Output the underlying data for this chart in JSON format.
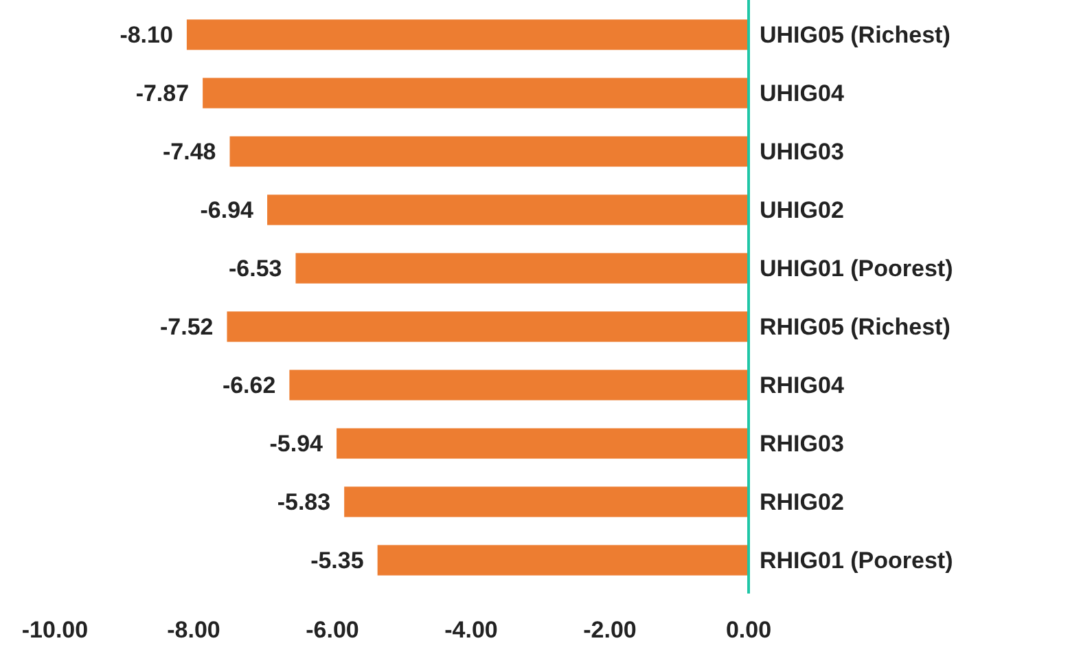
{
  "chart_data": {
    "type": "bar",
    "orientation": "horizontal",
    "categories": [
      "UHIG05 (Richest)",
      "UHIG04",
      "UHIG03",
      "UHIG02",
      "UHIG01 (Poorest)",
      "RHIG05 (Richest)",
      "RHIG04",
      "RHIG03",
      "RHIG02",
      "RHIG01 (Poorest)"
    ],
    "values": [
      -8.1,
      -7.87,
      -7.48,
      -6.94,
      -6.53,
      -7.52,
      -6.62,
      -5.94,
      -5.83,
      -5.35
    ],
    "value_labels": [
      "-8.10",
      "-7.87",
      "-7.48",
      "-6.94",
      "-6.53",
      "-7.52",
      "-6.62",
      "-5.94",
      "-5.83",
      "-5.35"
    ],
    "color": "#ed7d31",
    "xlim": [
      -10,
      0
    ],
    "xticks": [
      {
        "value": -10,
        "label": "-10.00"
      },
      {
        "value": -8,
        "label": "-8.00"
      },
      {
        "value": -6,
        "label": "-6.00"
      },
      {
        "value": -4,
        "label": "-4.00"
      },
      {
        "value": -2,
        "label": "-2.00"
      },
      {
        "value": 0,
        "label": "0.00"
      }
    ],
    "grid": false
  }
}
